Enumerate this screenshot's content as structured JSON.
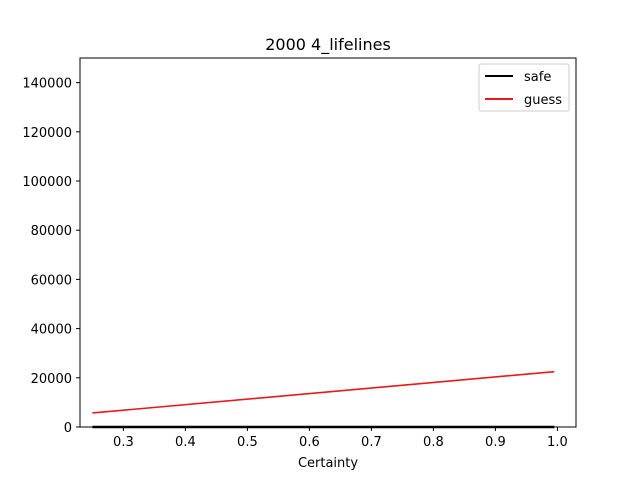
{
  "chart_data": {
    "type": "line",
    "title": "2000 4_lifelines",
    "xlabel": "Certainty",
    "ylabel": "",
    "xlim": [
      0.23,
      1.03
    ],
    "ylim": [
      0,
      150000
    ],
    "xticks": [
      0.3,
      0.4,
      0.5,
      0.6,
      0.7,
      0.8,
      0.9,
      1.0
    ],
    "xtick_labels": [
      "0.3",
      "0.4",
      "0.5",
      "0.6",
      "0.7",
      "0.8",
      "0.9",
      "1.0"
    ],
    "yticks": [
      0,
      20000,
      40000,
      60000,
      80000,
      100000,
      120000,
      140000
    ],
    "ytick_labels": [
      "0",
      "20000",
      "40000",
      "60000",
      "80000",
      "100000",
      "120000",
      "140000"
    ],
    "grid": false,
    "legend_position": "top-right",
    "series": [
      {
        "name": "safe",
        "color": "#000000",
        "x": [
          0.25,
          0.995
        ],
        "y": [
          0,
          0
        ]
      },
      {
        "name": "guess",
        "color": "#e8191b",
        "x": [
          0.25,
          0.995
        ],
        "y": [
          5700,
          22500
        ]
      }
    ]
  }
}
